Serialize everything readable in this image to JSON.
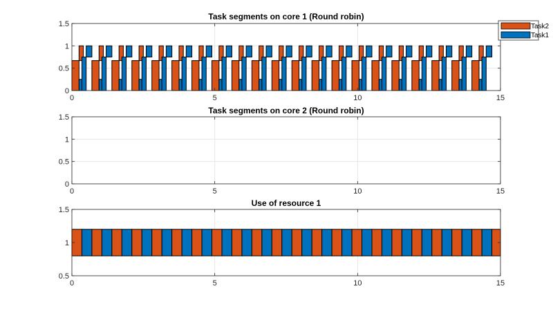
{
  "colors": {
    "task1": "#0072BD",
    "task2": "#D95319",
    "edge": "#000000",
    "grid": "#e6e6e6",
    "axis": "#262626"
  },
  "legend": {
    "placement": "top-right",
    "items": [
      {
        "label": "Task2",
        "color": "#D95319"
      },
      {
        "label": "Task1",
        "color": "#0072BD"
      }
    ]
  },
  "chart_data": [
    {
      "type": "bar",
      "title": "Task segments on core 1 (Round robin)",
      "xlim": [
        0,
        15
      ],
      "ylim": [
        0,
        1.5
      ],
      "xticks": [
        0,
        5,
        10,
        15
      ],
      "yticks": [
        0,
        0.5,
        1,
        1.5
      ],
      "ytick_labels": [
        "0",
        "0.5",
        "1",
        "1.5"
      ],
      "grid": true,
      "period": 0.7,
      "periods": 21,
      "series": [
        {
          "name": "Task2",
          "color": "#D95319",
          "segments": [
            {
              "offset": 0.0,
              "duration": 0.25,
              "y_bottom": 0,
              "y_top": 0.67
            },
            {
              "offset": 0.25,
              "duration": 0.15,
              "y_bottom": 0.67,
              "y_top": 1.0
            }
          ]
        },
        {
          "name": "Task1",
          "color": "#0072BD",
          "segments": [
            {
              "offset": 0.25,
              "duration": 0.1,
              "y_bottom": 0,
              "y_top": 0.25
            },
            {
              "offset": 0.35,
              "duration": 0.15,
              "y_bottom": 0,
              "y_top": 0.75
            },
            {
              "offset": 0.5,
              "duration": 0.2,
              "y_bottom": 0.75,
              "y_top": 1.0
            }
          ]
        }
      ]
    },
    {
      "type": "bar",
      "title": "Task segments on core 2 (Round robin)",
      "xlim": [
        0,
        15
      ],
      "ylim": [
        0,
        1.5
      ],
      "xticks": [
        0,
        5,
        10,
        15
      ],
      "yticks": [
        0,
        0.5,
        1,
        1.5
      ],
      "ytick_labels": [
        "0",
        "0.5",
        "1",
        "1.5"
      ],
      "grid": true,
      "series": []
    },
    {
      "type": "bar",
      "title": "Use of resource 1",
      "xlim": [
        0,
        15
      ],
      "ylim": [
        0.5,
        1.5
      ],
      "xticks": [
        0,
        5,
        10,
        15
      ],
      "yticks": [
        0.5,
        1,
        1.5
      ],
      "ytick_labels": [
        "0.5",
        "1",
        "1.5"
      ],
      "grid": true,
      "band": [
        0.8,
        1.2
      ],
      "slot_duration": 0.35,
      "slots": 43,
      "pattern": [
        "Task2",
        "Task1"
      ]
    }
  ]
}
